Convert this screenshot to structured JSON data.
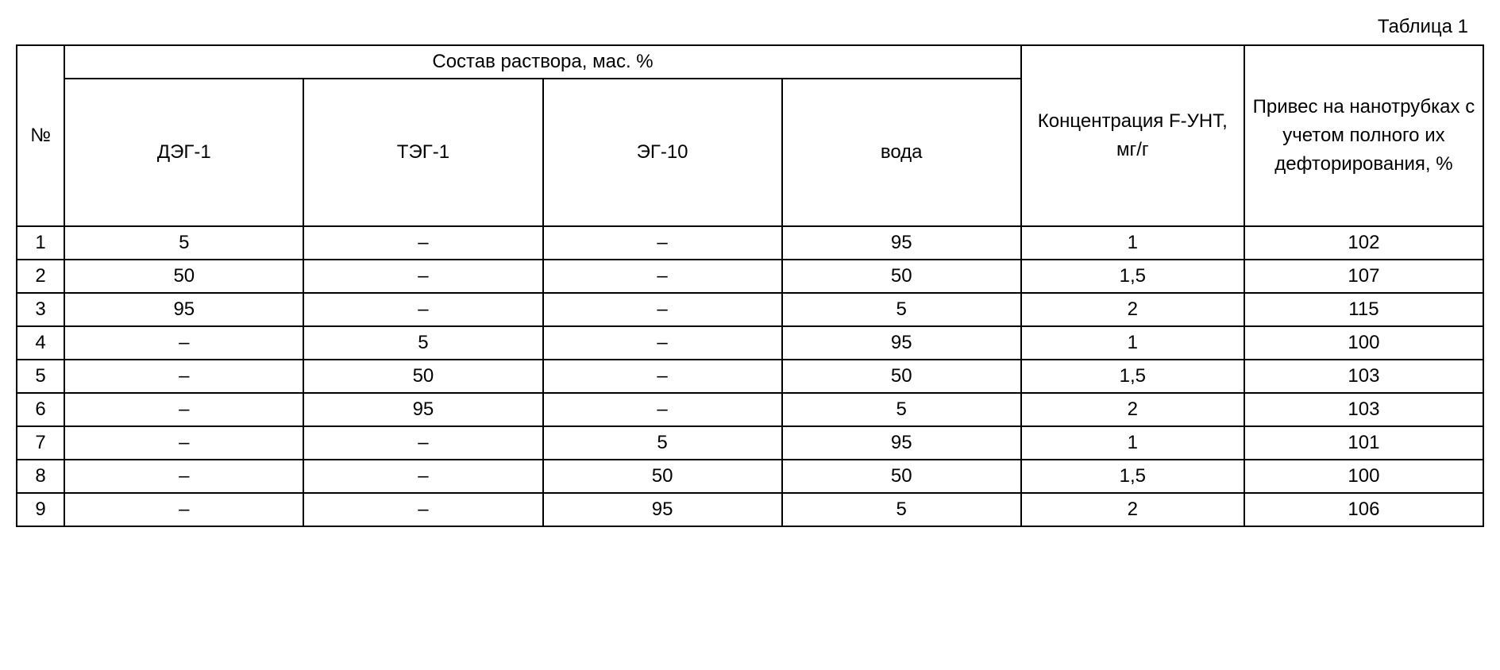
{
  "caption": "Таблица 1",
  "header": {
    "num": "№",
    "group": "Состав раствора, мас. %",
    "sub": [
      "ДЭГ-1",
      "ТЭГ-1",
      "ЭГ-10",
      "вода"
    ],
    "conc": "Концентрация F-УНТ, мг/г",
    "gain": "Привес на нанотрубках с учетом полного их дефторирования, %"
  },
  "rows": [
    {
      "n": "1",
      "c": [
        "5",
        "–",
        "–",
        "95"
      ],
      "conc": "1",
      "gain": "102"
    },
    {
      "n": "2",
      "c": [
        "50",
        "–",
        "–",
        "50"
      ],
      "conc": "1,5",
      "gain": "107"
    },
    {
      "n": "3",
      "c": [
        "95",
        "–",
        "–",
        "5"
      ],
      "conc": "2",
      "gain": "115"
    },
    {
      "n": "4",
      "c": [
        "–",
        "5",
        "–",
        "95"
      ],
      "conc": "1",
      "gain": "100"
    },
    {
      "n": "5",
      "c": [
        "–",
        "50",
        "–",
        "50"
      ],
      "conc": "1,5",
      "gain": "103"
    },
    {
      "n": "6",
      "c": [
        "–",
        "95",
        "–",
        "5"
      ],
      "conc": "2",
      "gain": "103"
    },
    {
      "n": "7",
      "c": [
        "–",
        "–",
        "5",
        "95"
      ],
      "conc": "1",
      "gain": "101"
    },
    {
      "n": "8",
      "c": [
        "–",
        "–",
        "50",
        "50"
      ],
      "conc": "1,5",
      "gain": "100"
    },
    {
      "n": "9",
      "c": [
        "–",
        "–",
        "95",
        "5"
      ],
      "conc": "2",
      "gain": "106"
    }
  ],
  "style": {
    "font_family": "Arial",
    "body_fontsize_pt": 18,
    "border_color": "#000000",
    "background_color": "#ffffff",
    "text_color": "#000000",
    "col_widths_pct": [
      3,
      15,
      15,
      15,
      15,
      14,
      15
    ]
  }
}
